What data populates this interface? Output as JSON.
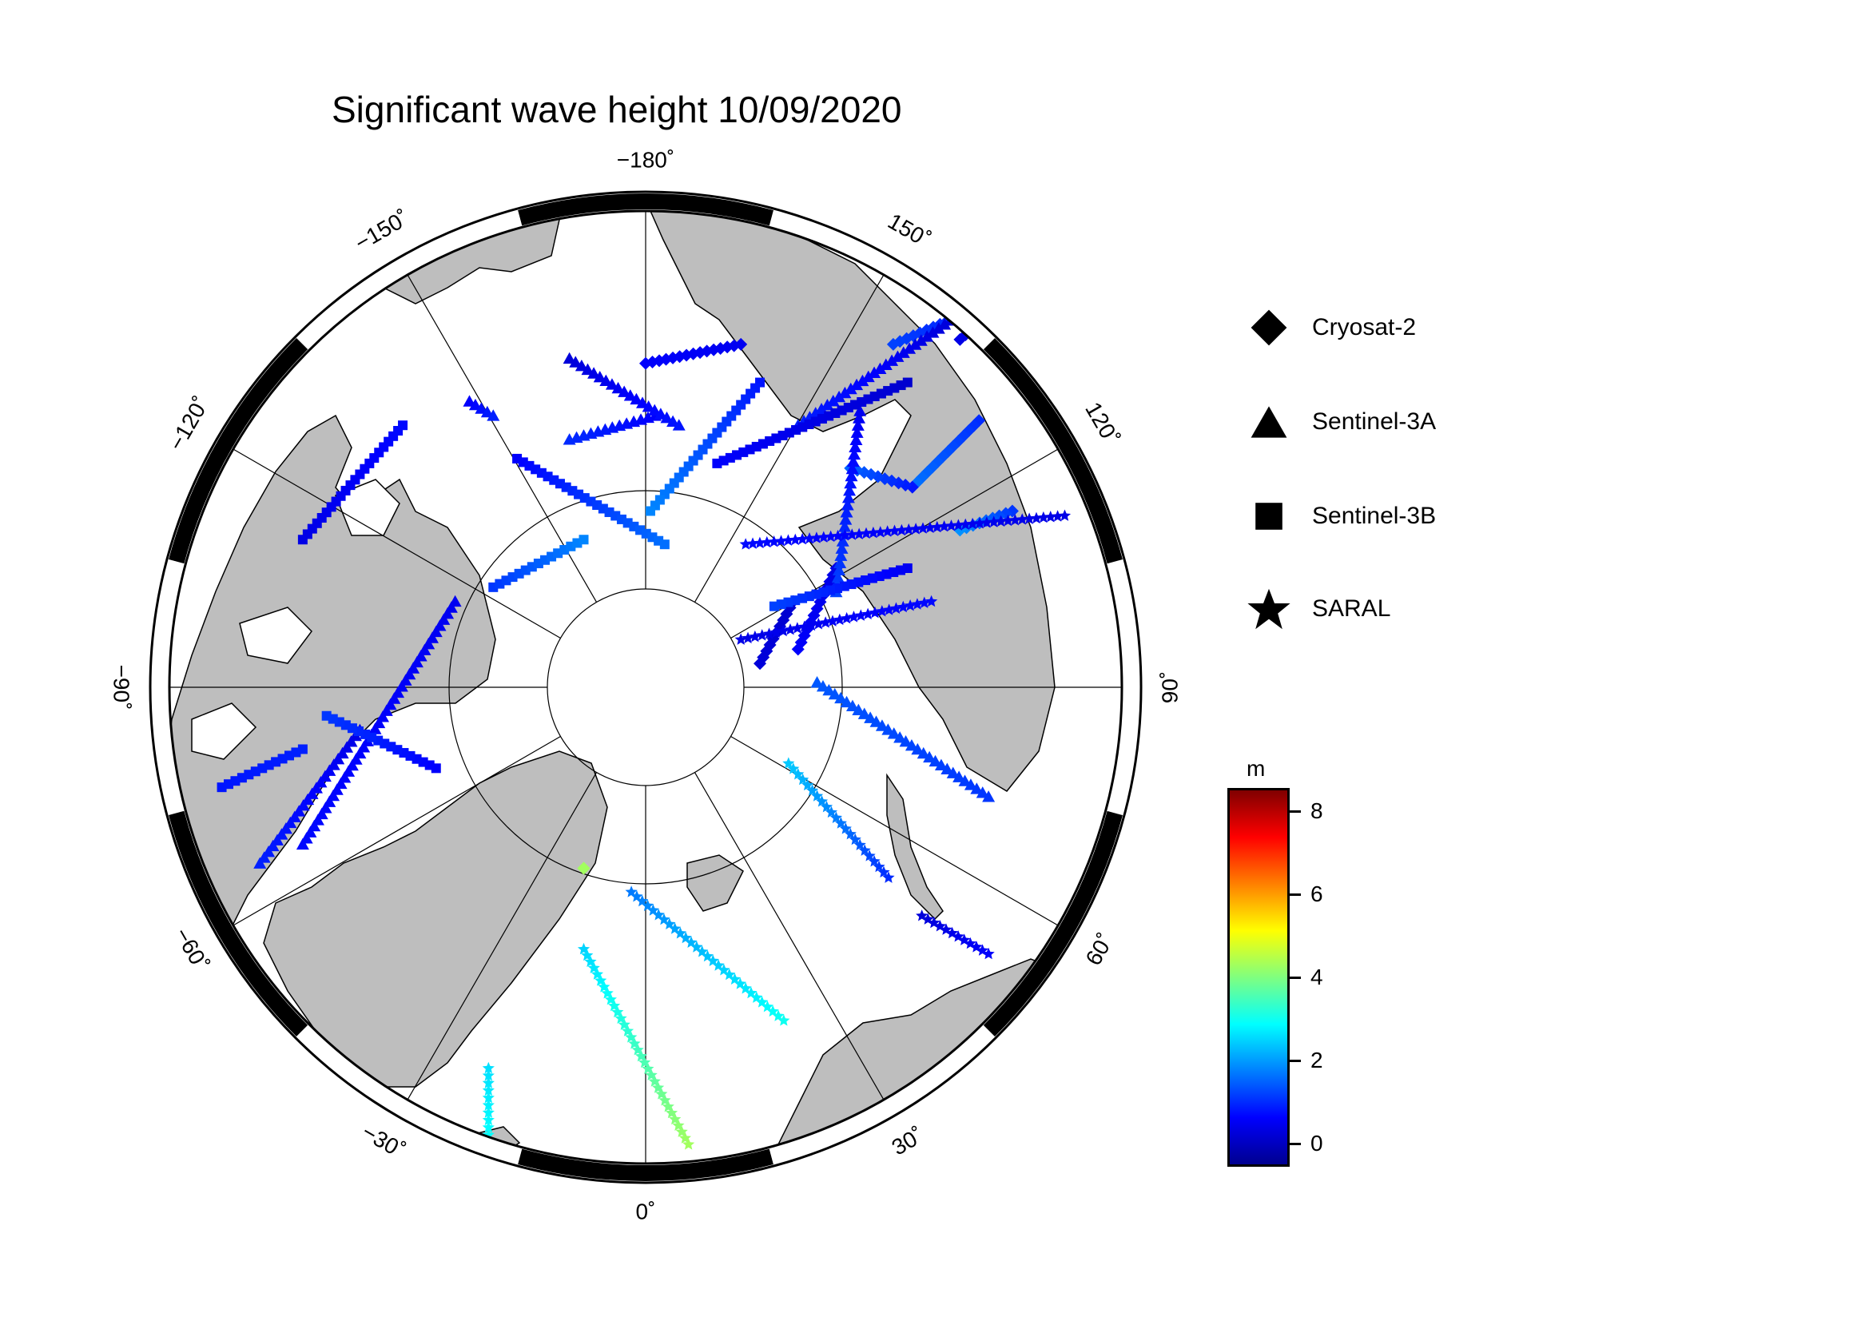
{
  "title": "Significant wave height 10/09/2020",
  "legend": [
    {
      "name": "Cryosat-2",
      "symbol": "diamond-icon"
    },
    {
      "name": "Sentinel-3A",
      "symbol": "triangle-icon"
    },
    {
      "name": "Sentinel-3B",
      "symbol": "square-icon"
    },
    {
      "name": "SARAL",
      "symbol": "star-icon"
    }
  ],
  "colorbar": {
    "unit": "m",
    "range": [
      -0.5,
      8.5
    ],
    "ticks": [
      "0",
      "2",
      "4",
      "6",
      "8"
    ],
    "tick_values": [
      0,
      2,
      4,
      6,
      8
    ]
  },
  "graticule": {
    "longitude_labels": [
      {
        "lon": 180,
        "text": "−180˚"
      },
      {
        "lon": 150,
        "text": "150˚"
      },
      {
        "lon": 120,
        "text": "120˚"
      },
      {
        "lon": 90,
        "text": "90˚"
      },
      {
        "lon": 60,
        "text": "60˚"
      },
      {
        "lon": 30,
        "text": "30˚"
      },
      {
        "lon": 0,
        "text": "0˚"
      },
      {
        "lon": -30,
        "text": "−30˚"
      },
      {
        "lon": -60,
        "text": "−60˚"
      },
      {
        "lon": -90,
        "text": "−90˚"
      },
      {
        "lon": -120,
        "text": "−120˚"
      },
      {
        "lon": -150,
        "text": "−150˚"
      }
    ],
    "meridians_every_deg": 30,
    "parallel_circles": 2
  },
  "colors": {
    "land": "#bebebe",
    "ocean": "#ffffff",
    "frame": "#000000"
  },
  "tracks": [
    {
      "sat": "Cryosat-2",
      "swh_start": 0.6,
      "swh_end": 1.2,
      "from": [
        0.8,
        0.84
      ],
      "to": [
        0.52,
        0.72
      ]
    },
    {
      "sat": "Cryosat-2",
      "swh_start": 0.4,
      "swh_end": 0.4,
      "from": [
        0.73,
        0.79
      ],
      "to": [
        0.66,
        0.73
      ]
    },
    {
      "sat": "Cryosat-2",
      "swh_start": 1.0,
      "swh_end": 1.6,
      "from": [
        0.7,
        0.56
      ],
      "to": [
        0.57,
        0.43
      ]
    },
    {
      "sat": "Cryosat-2",
      "swh_start": 0.8,
      "swh_end": 1.5,
      "from": [
        0.56,
        0.42
      ],
      "to": [
        0.43,
        0.46
      ]
    },
    {
      "sat": "Cryosat-2",
      "swh_start": 0.5,
      "swh_end": 0.6,
      "from": [
        0.2,
        0.72
      ],
      "to": [
        0.0,
        0.68
      ]
    },
    {
      "sat": "Cryosat-2",
      "swh_start": 1.1,
      "swh_end": 1.9,
      "from": [
        0.77,
        0.37
      ],
      "to": [
        0.66,
        0.33
      ]
    },
    {
      "sat": "Cryosat-2",
      "swh_start": 0.4,
      "swh_end": 0.6,
      "from": [
        0.4,
        0.25
      ],
      "to": [
        0.32,
        0.08
      ]
    },
    {
      "sat": "Cryosat-2",
      "swh_start": 0.2,
      "swh_end": 0.3,
      "from": [
        0.31,
        0.18
      ],
      "to": [
        0.24,
        0.05
      ]
    },
    {
      "sat": "Cryosat-2",
      "swh_start": 4.3,
      "swh_end": 4.3,
      "from": [
        -0.13,
        -0.38
      ],
      "to": [
        -0.13,
        -0.38
      ]
    },
    {
      "sat": "Sentinel-3A",
      "swh_start": 0.3,
      "swh_end": 0.9,
      "from": [
        0.64,
        0.77
      ],
      "to": [
        0.32,
        0.55
      ]
    },
    {
      "sat": "Sentinel-3A",
      "swh_start": 0.6,
      "swh_end": 1.0,
      "from": [
        0.02,
        0.57
      ],
      "to": [
        -0.16,
        0.52
      ]
    },
    {
      "sat": "Sentinel-3A",
      "swh_start": 0.5,
      "swh_end": 1.2,
      "from": [
        0.45,
        0.58
      ],
      "to": [
        0.4,
        0.2
      ]
    },
    {
      "sat": "Sentinel-3A",
      "swh_start": 1.1,
      "swh_end": 1.4,
      "from": [
        0.72,
        -0.23
      ],
      "to": [
        0.36,
        0.01
      ]
    },
    {
      "sat": "Sentinel-3A",
      "swh_start": 0.3,
      "swh_end": 0.8,
      "from": [
        -0.16,
        0.69
      ],
      "to": [
        0.07,
        0.55
      ]
    },
    {
      "sat": "Sentinel-3A",
      "swh_start": 0.6,
      "swh_end": 0.9,
      "from": [
        -0.37,
        0.6
      ],
      "to": [
        -0.32,
        0.57
      ]
    },
    {
      "sat": "Sentinel-3A",
      "swh_start": 0.5,
      "swh_end": 0.7,
      "from": [
        -0.4,
        0.18
      ],
      "to": [
        -0.72,
        -0.33
      ]
    },
    {
      "sat": "Sentinel-3A",
      "swh_start": 0.4,
      "swh_end": 0.9,
      "from": [
        -0.6,
        -0.09
      ],
      "to": [
        -0.81,
        -0.37
      ]
    },
    {
      "sat": "Sentinel-3B",
      "swh_start": 0.6,
      "swh_end": 1.6,
      "from": [
        -0.27,
        0.48
      ],
      "to": [
        0.04,
        0.3
      ]
    },
    {
      "sat": "Sentinel-3B",
      "swh_start": 1.1,
      "swh_end": 1.8,
      "from": [
        -0.32,
        0.21
      ],
      "to": [
        -0.13,
        0.31
      ]
    },
    {
      "sat": "Sentinel-3B",
      "swh_start": 0.2,
      "swh_end": 0.6,
      "from": [
        0.55,
        0.64
      ],
      "to": [
        0.15,
        0.47
      ]
    },
    {
      "sat": "Sentinel-3B",
      "swh_start": 0.8,
      "swh_end": 1.8,
      "from": [
        0.24,
        0.64
      ],
      "to": [
        0.01,
        0.37
      ]
    },
    {
      "sat": "Sentinel-3B",
      "swh_start": 0.5,
      "swh_end": 1.2,
      "from": [
        0.55,
        0.25
      ],
      "to": [
        0.27,
        0.17
      ]
    },
    {
      "sat": "Sentinel-3B",
      "swh_start": 0.6,
      "swh_end": 1.1,
      "from": [
        -0.44,
        -0.17
      ],
      "to": [
        -0.67,
        -0.06
      ]
    },
    {
      "sat": "Sentinel-3B",
      "swh_start": 0.4,
      "swh_end": 0.7,
      "from": [
        -0.72,
        0.31
      ],
      "to": [
        -0.51,
        0.55
      ]
    },
    {
      "sat": "Sentinel-3B",
      "swh_start": 0.8,
      "swh_end": 0.9,
      "from": [
        -0.89,
        -0.21
      ],
      "to": [
        -0.72,
        -0.13
      ]
    },
    {
      "sat": "SARAL",
      "swh_start": 0.4,
      "swh_end": 0.7,
      "from": [
        0.88,
        0.36
      ],
      "to": [
        0.21,
        0.3
      ]
    },
    {
      "sat": "SARAL",
      "swh_start": 1.0,
      "swh_end": 2.4,
      "from": [
        0.51,
        -0.4
      ],
      "to": [
        0.3,
        -0.16
      ]
    },
    {
      "sat": "SARAL",
      "swh_start": 1.7,
      "swh_end": 3.0,
      "from": [
        -0.03,
        -0.43
      ],
      "to": [
        0.29,
        -0.7
      ]
    },
    {
      "sat": "SARAL",
      "swh_start": 2.5,
      "swh_end": 4.3,
      "from": [
        -0.13,
        -0.55
      ],
      "to": [
        0.09,
        -0.96
      ]
    },
    {
      "sat": "SARAL",
      "swh_start": 2.6,
      "swh_end": 2.9,
      "from": [
        -0.33,
        -0.8
      ],
      "to": [
        -0.33,
        -0.94
      ]
    },
    {
      "sat": "SARAL",
      "swh_start": 0.3,
      "swh_end": 0.6,
      "from": [
        0.58,
        -0.48
      ],
      "to": [
        0.72,
        -0.56
      ]
    },
    {
      "sat": "SARAL",
      "swh_start": 0.4,
      "swh_end": 0.7,
      "from": [
        0.2,
        0.1
      ],
      "to": [
        0.6,
        0.18
      ]
    }
  ]
}
